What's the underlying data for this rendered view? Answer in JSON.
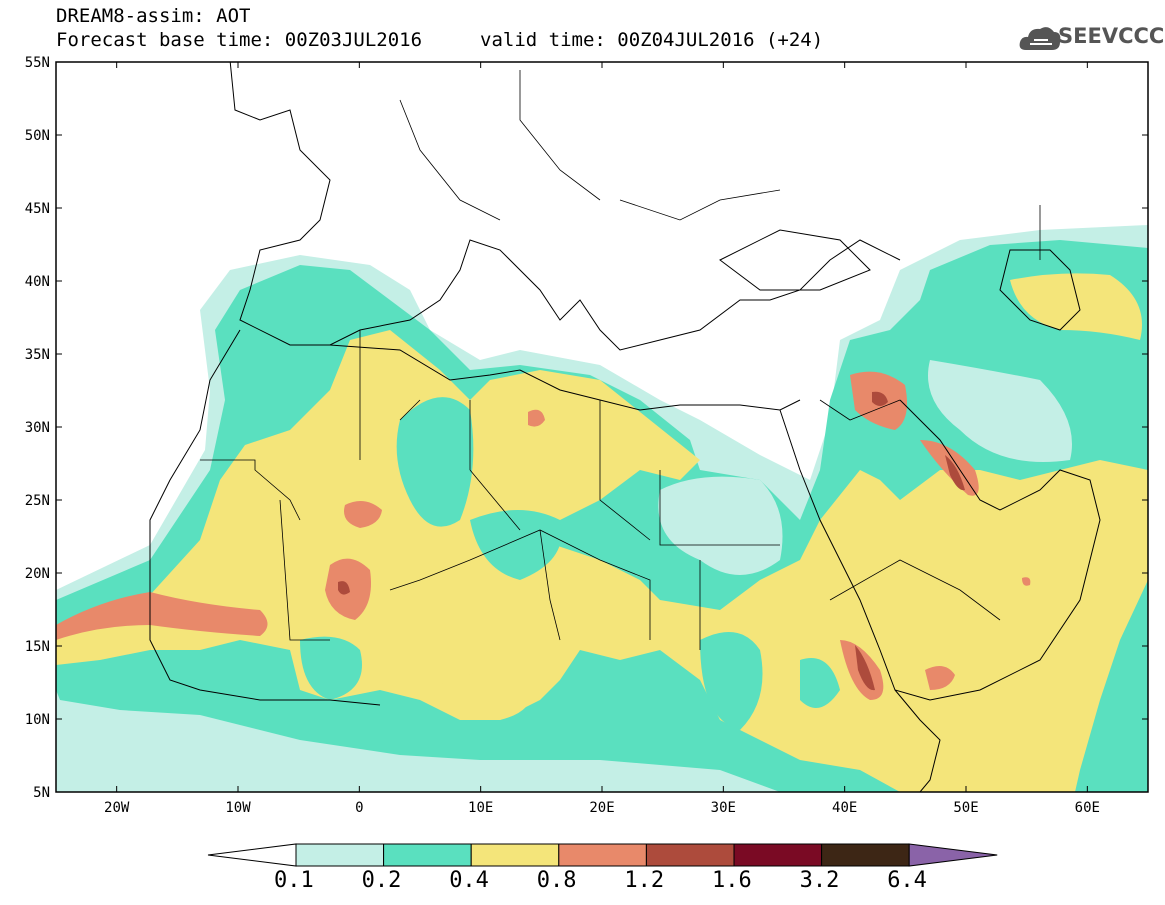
{
  "header": {
    "title_line1": "DREAM8-assim: AOT",
    "title_line2": "Forecast base time: 00Z03JUL2016",
    "title_line2b": "valid time: 00Z04JUL2016 (+24)",
    "logo_text": "SEEVCCC",
    "logo_icon": "cloud-icon"
  },
  "map": {
    "lat_labels": [
      "55N",
      "50N",
      "45N",
      "40N",
      "35N",
      "30N",
      "25N",
      "20N",
      "15N",
      "10N",
      "5N"
    ],
    "lon_labels": [
      "20W",
      "10W",
      "0",
      "10E",
      "20E",
      "30E",
      "40E",
      "50E",
      "60E"
    ],
    "lat_range": [
      5,
      55
    ],
    "lon_range": [
      -25,
      65
    ]
  },
  "colorbar": {
    "labels": [
      "0.1",
      "0.2",
      "0.4",
      "0.8",
      "1.2",
      "1.6",
      "3.2",
      "6.4"
    ],
    "colors": [
      "#ffffff",
      "#c4efe6",
      "#5ae0bf",
      "#f4e57a",
      "#e8896a",
      "#ad4b3c",
      "#7a0a24",
      "#3d2615",
      "#8a63a8"
    ]
  }
}
